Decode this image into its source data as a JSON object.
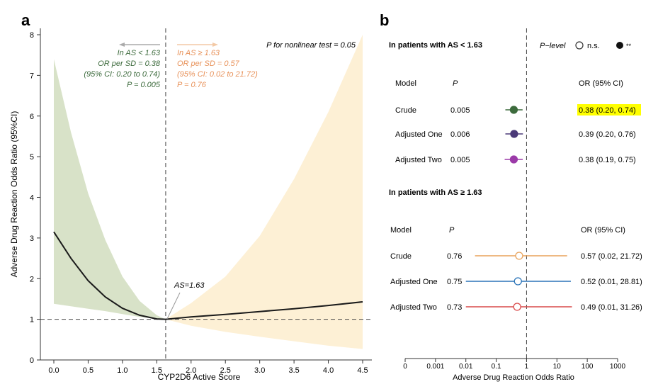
{
  "chart_data": [
    {
      "panel": "a",
      "type": "line",
      "xlabel": "CYP2D6 Active Score",
      "ylabel": "Adverse Drug Reaction Odds Ratio  (95%CI)",
      "xlim": [
        -0.1,
        4.5
      ],
      "ylim": [
        0,
        8.1
      ],
      "xticks": [
        "0.0",
        "0.5",
        "1.0",
        "1.5",
        "2.0",
        "2.5",
        "3.0",
        "3.5",
        "4.0",
        "4.5"
      ],
      "yticks": [
        "0",
        "1",
        "2",
        "3",
        "4",
        "5",
        "6",
        "7",
        "8"
      ],
      "grid": false,
      "reference_line_y": 1,
      "cutoff_x": 1.63,
      "cutoff_label": "AS=1.63",
      "nonlinear_test": "P for nonlinear test = 0.05",
      "series": [
        {
          "segment": "left",
          "color": "#3d6b3d",
          "band_color": "#d8e2c8",
          "x": [
            0.0,
            0.25,
            0.5,
            0.75,
            1.0,
            1.25,
            1.5,
            1.63
          ],
          "y": [
            3.15,
            2.5,
            1.95,
            1.55,
            1.27,
            1.1,
            1.01,
            1.0
          ],
          "lower": [
            1.38,
            1.32,
            1.26,
            1.2,
            1.13,
            1.06,
            1.01,
            1.0
          ],
          "upper": [
            7.4,
            5.6,
            4.1,
            2.95,
            2.05,
            1.45,
            1.1,
            1.0
          ]
        },
        {
          "segment": "right",
          "color": "#e8925a",
          "band_color": "#fdf0d5",
          "x": [
            1.63,
            2.0,
            2.5,
            3.0,
            3.5,
            4.0,
            4.5
          ],
          "y": [
            1.0,
            1.06,
            1.12,
            1.19,
            1.26,
            1.34,
            1.43
          ],
          "lower": [
            1.0,
            0.84,
            0.69,
            0.57,
            0.46,
            0.35,
            0.27
          ],
          "upper": [
            1.0,
            1.4,
            2.05,
            3.05,
            4.45,
            6.1,
            8.0
          ]
        }
      ],
      "annotations": {
        "left": [
          "In AS < 1.63",
          "OR per SD = 0.38",
          "(95% CI: 0.20 to 0.74)",
          "P = 0.005"
        ],
        "right": [
          "In AS ≥ 1.63",
          "OR per SD = 0.57",
          "(95% CI: 0.02 to 21.72)",
          "P = 0.76"
        ]
      }
    },
    {
      "panel": "b",
      "type": "scatter",
      "xlabel": "Adverse Drug Reaction Odds Ratio",
      "xscale": "log",
      "xlim": [
        0.0001,
        1000
      ],
      "xticks": [
        "0",
        "0.001",
        "0.01",
        "0.1",
        "1",
        "10",
        "100",
        "1000"
      ],
      "reference_line_x": 1,
      "legend": {
        "title": "P−level",
        "items": [
          "n.s.",
          "**"
        ],
        "position": "top-right"
      },
      "groups": [
        {
          "title": "In patients with AS < 1.63",
          "col_model": "Model",
          "col_p": "P",
          "col_or": "OR (95% CI)",
          "rows": [
            {
              "model": "Crude",
              "p": "0.005",
              "or": 0.38,
              "lo": 0.2,
              "hi": 0.74,
              "text": "0.38 (0.20, 0.74)",
              "color": "#3d6b3d",
              "filled": true,
              "highlight": true
            },
            {
              "model": "Adjusted One",
              "p": "0.006",
              "or": 0.39,
              "lo": 0.2,
              "hi": 0.76,
              "text": "0.39 (0.20, 0.76)",
              "color": "#4b3a78",
              "filled": true,
              "highlight": false
            },
            {
              "model": "Adjusted Two",
              "p": "0.005",
              "or": 0.38,
              "lo": 0.19,
              "hi": 0.75,
              "text": "0.38 (0.19, 0.75)",
              "color": "#9b3aa8",
              "filled": true,
              "highlight": false
            }
          ]
        },
        {
          "title": "In patients with AS ≥ 1.63",
          "col_model": "Model",
          "col_p": "P",
          "col_or": "OR (95% CI)",
          "rows": [
            {
              "model": "Crude",
              "p": "0.76",
              "or": 0.57,
              "lo": 0.02,
              "hi": 21.72,
              "text": "0.57 (0.02, 21.72)",
              "color": "#e8a25a",
              "filled": false,
              "highlight": false
            },
            {
              "model": "Adjusted One",
              "p": "0.75",
              "or": 0.52,
              "lo": 0.01,
              "hi": 28.81,
              "text": "0.52 (0.01, 28.81)",
              "color": "#2b74b8",
              "filled": false,
              "highlight": false
            },
            {
              "model": "Adjusted Two",
              "p": "0.73",
              "or": 0.49,
              "lo": 0.01,
              "hi": 31.26,
              "text": "0.49 (0.01, 31.26)",
              "color": "#d94a4a",
              "filled": false,
              "highlight": false
            }
          ]
        }
      ]
    }
  ],
  "highlight_color": "#ffff00"
}
